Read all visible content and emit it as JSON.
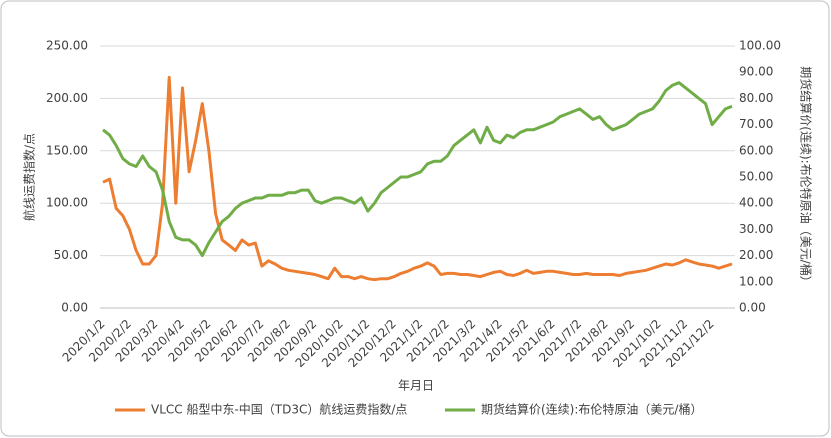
{
  "chart_data": {
    "type": "line",
    "x_label": "年月日",
    "y_label": "航线运费指数/点",
    "y2_label": "期货结算价(连续):布伦特原油（美元/桶）",
    "categories": [
      "2020/1/2",
      null,
      null,
      null,
      "2020/2/2",
      null,
      null,
      null,
      "2020/3/2",
      null,
      null,
      null,
      "2020/4/2",
      null,
      null,
      null,
      "2020/5/2",
      null,
      null,
      null,
      "2020/6/2",
      null,
      null,
      null,
      "2020/7/2",
      null,
      null,
      null,
      "2020/8/2",
      null,
      null,
      null,
      "2020/9/2",
      null,
      null,
      null,
      "2020/10/2",
      null,
      null,
      null,
      "2020/11/2",
      null,
      null,
      null,
      "2020/12/2",
      null,
      null,
      null,
      "2021/1/2",
      null,
      null,
      null,
      "2021/2/2",
      null,
      null,
      null,
      "2021/3/2",
      null,
      null,
      null,
      "2021/4/2",
      null,
      null,
      null,
      "2021/5/2",
      null,
      null,
      null,
      "2021/6/2",
      null,
      null,
      null,
      "2021/7/2",
      null,
      null,
      null,
      "2021/8/2",
      null,
      null,
      null,
      "2021/9/2",
      null,
      null,
      null,
      "2021/10/2",
      null,
      null,
      null,
      "2021/11/2",
      null,
      null,
      null,
      "2021/12/2",
      null,
      null,
      null
    ],
    "series": [
      {
        "name": "VLCC 船型中东-中国（TD3C）航线运费指数/点",
        "color": "#ed7d31",
        "values": [
          120,
          123,
          95,
          88,
          75,
          55,
          42,
          42,
          50,
          100,
          220,
          100,
          210,
          130,
          160,
          195,
          150,
          90,
          65,
          60,
          55,
          65,
          60,
          62,
          40,
          45,
          42,
          38,
          36,
          35,
          34,
          33,
          32,
          30,
          28,
          38,
          30,
          30,
          28,
          30,
          28,
          27,
          28,
          28,
          30,
          33,
          35,
          38,
          40,
          43,
          40,
          32,
          33,
          33,
          32,
          32,
          31,
          30,
          32,
          34,
          35,
          32,
          31,
          33,
          36,
          33,
          34,
          35,
          35,
          34,
          33,
          32,
          32,
          33,
          32,
          32,
          32,
          32,
          31,
          33,
          34,
          35,
          36,
          38,
          40,
          42,
          41,
          43,
          46,
          44,
          42,
          41,
          40,
          38,
          40,
          42
        ]
      },
      {
        "name": "期货结算价(连续):布伦特原油（美元/桶）",
        "color": "#70ad47",
        "axis": "y2",
        "values": [
          68,
          66,
          62,
          57,
          55,
          54,
          58,
          54,
          52,
          45,
          33,
          27,
          26,
          26,
          24,
          20,
          25,
          29,
          33,
          35,
          38,
          40,
          41,
          42,
          42,
          43,
          43,
          43,
          44,
          44,
          45,
          45,
          41,
          40,
          41,
          42,
          42,
          41,
          40,
          42,
          37,
          40,
          44,
          46,
          48,
          50,
          50,
          51,
          52,
          55,
          56,
          56,
          58,
          62,
          64,
          66,
          68,
          63,
          69,
          64,
          63,
          66,
          65,
          67,
          68,
          68,
          69,
          70,
          71,
          73,
          74,
          75,
          76,
          74,
          72,
          73,
          70,
          68,
          69,
          70,
          72,
          74,
          75,
          76,
          79,
          83,
          85,
          86,
          84,
          82,
          80,
          78,
          70,
          73,
          76,
          77
        ]
      }
    ],
    "ylim": [
      0,
      250
    ],
    "yticks": [
      {
        "value": 0,
        "label": "0.00"
      },
      {
        "value": 50,
        "label": "50.00"
      },
      {
        "value": 100,
        "label": "100.00"
      },
      {
        "value": 150,
        "label": "150.00"
      },
      {
        "value": 200,
        "label": "200.00"
      },
      {
        "value": 250,
        "label": "250.00"
      }
    ],
    "y2lim": [
      0,
      100
    ],
    "y2ticks": [
      {
        "value": 0,
        "label": "0.00"
      },
      {
        "value": 10,
        "label": "10.00"
      },
      {
        "value": 20,
        "label": "20.00"
      },
      {
        "value": 30,
        "label": "30.00"
      },
      {
        "value": 40,
        "label": "40.00"
      },
      {
        "value": 50,
        "label": "50.00"
      },
      {
        "value": 60,
        "label": "60.00"
      },
      {
        "value": 70,
        "label": "70.00"
      },
      {
        "value": 80,
        "label": "80.00"
      },
      {
        "value": 90,
        "label": "90.00"
      },
      {
        "value": 100,
        "label": "100.00"
      }
    ],
    "grid": true
  }
}
